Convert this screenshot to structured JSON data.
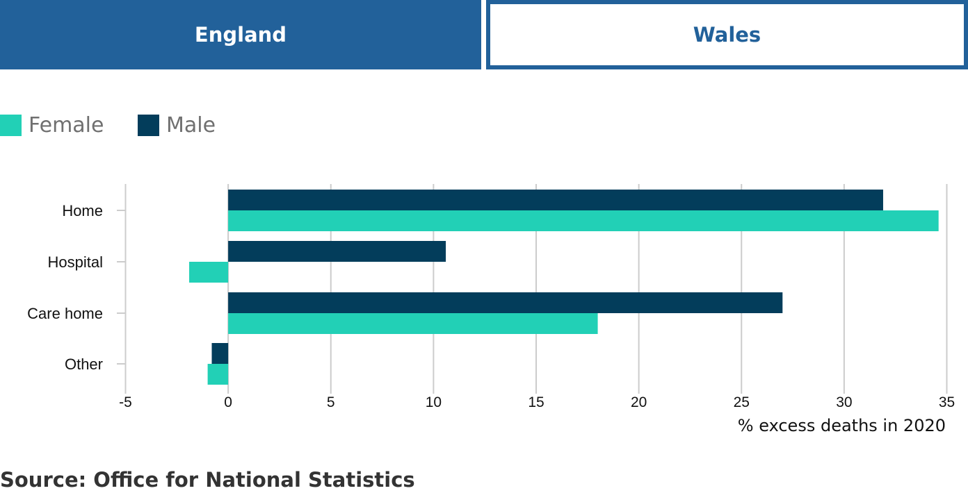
{
  "tabs": {
    "england": "England",
    "wales": "Wales"
  },
  "legend": {
    "female": "Female",
    "male": "Male"
  },
  "colors": {
    "female": "#22d0b6",
    "male": "#033d5b",
    "tab": "#22619a",
    "grid": "#cccccc"
  },
  "chart_data": {
    "type": "bar",
    "orientation": "horizontal",
    "categories": [
      "Home",
      "Hospital",
      "Care home",
      "Other"
    ],
    "series": [
      {
        "name": "Male",
        "values": [
          31.9,
          10.6,
          27.0,
          -0.8
        ]
      },
      {
        "name": "Female",
        "values": [
          34.6,
          -1.9,
          18.0,
          -1.0
        ]
      }
    ],
    "xlabel": "% excess deaths in 2020",
    "ylabel": "",
    "xlim": [
      -5,
      35
    ],
    "xticks": [
      -5,
      0,
      5,
      10,
      15,
      20,
      25,
      30,
      35
    ],
    "grid": "vertical",
    "legend_position": "top-left"
  },
  "source": "Source: Office for National Statistics"
}
